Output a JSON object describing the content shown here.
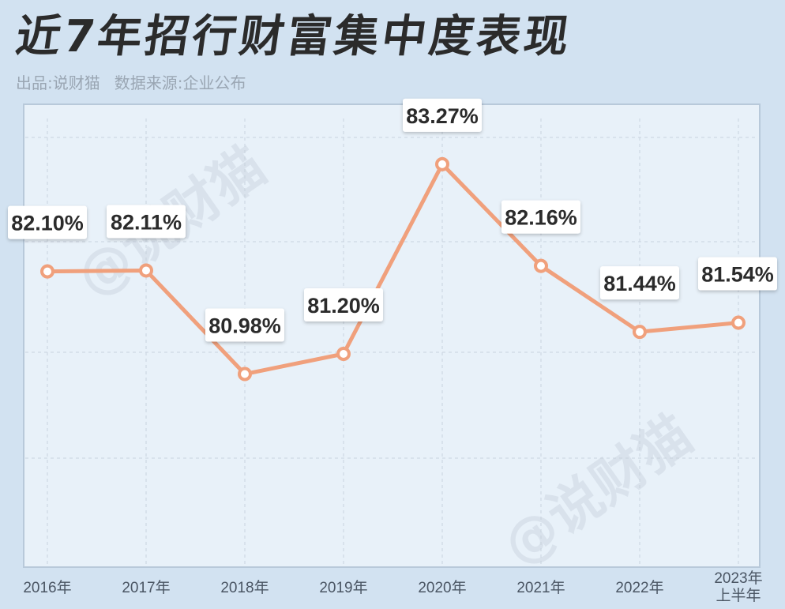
{
  "header": {
    "title": "近7年招行财富集中度表现",
    "source_left": "出品:说财猫",
    "source_right": "数据来源:企业公布"
  },
  "watermark": "@说财猫",
  "colors": {
    "line": "#f0a07c",
    "plot_bg": "#e8f1f9",
    "frame": "#b8c9da"
  },
  "chart_data": {
    "type": "line",
    "title": "近7年招行财富集中度表现",
    "xlabel": "",
    "ylabel": "",
    "categories": [
      "2016年",
      "2017年",
      "2018年",
      "2019年",
      "2020年",
      "2021年",
      "2022年",
      "2023年上半年"
    ],
    "category_lines": [
      [
        "2016年"
      ],
      [
        "2017年"
      ],
      [
        "2018年"
      ],
      [
        "2019年"
      ],
      [
        "2020年"
      ],
      [
        "2021年"
      ],
      [
        "2022年"
      ],
      [
        "2023年",
        "上半年"
      ]
    ],
    "series": [
      {
        "values": [
          82.1,
          82.11,
          80.98,
          81.2,
          83.27,
          82.16,
          81.44,
          81.54
        ]
      }
    ],
    "data_labels": [
      "82.10%",
      "82.11%",
      "80.98%",
      "81.20%",
      "83.27%",
      "82.16%",
      "81.44%",
      "81.54%"
    ],
    "ylim": [
      79.2,
      84.2
    ],
    "grid": true,
    "legend": "none"
  }
}
